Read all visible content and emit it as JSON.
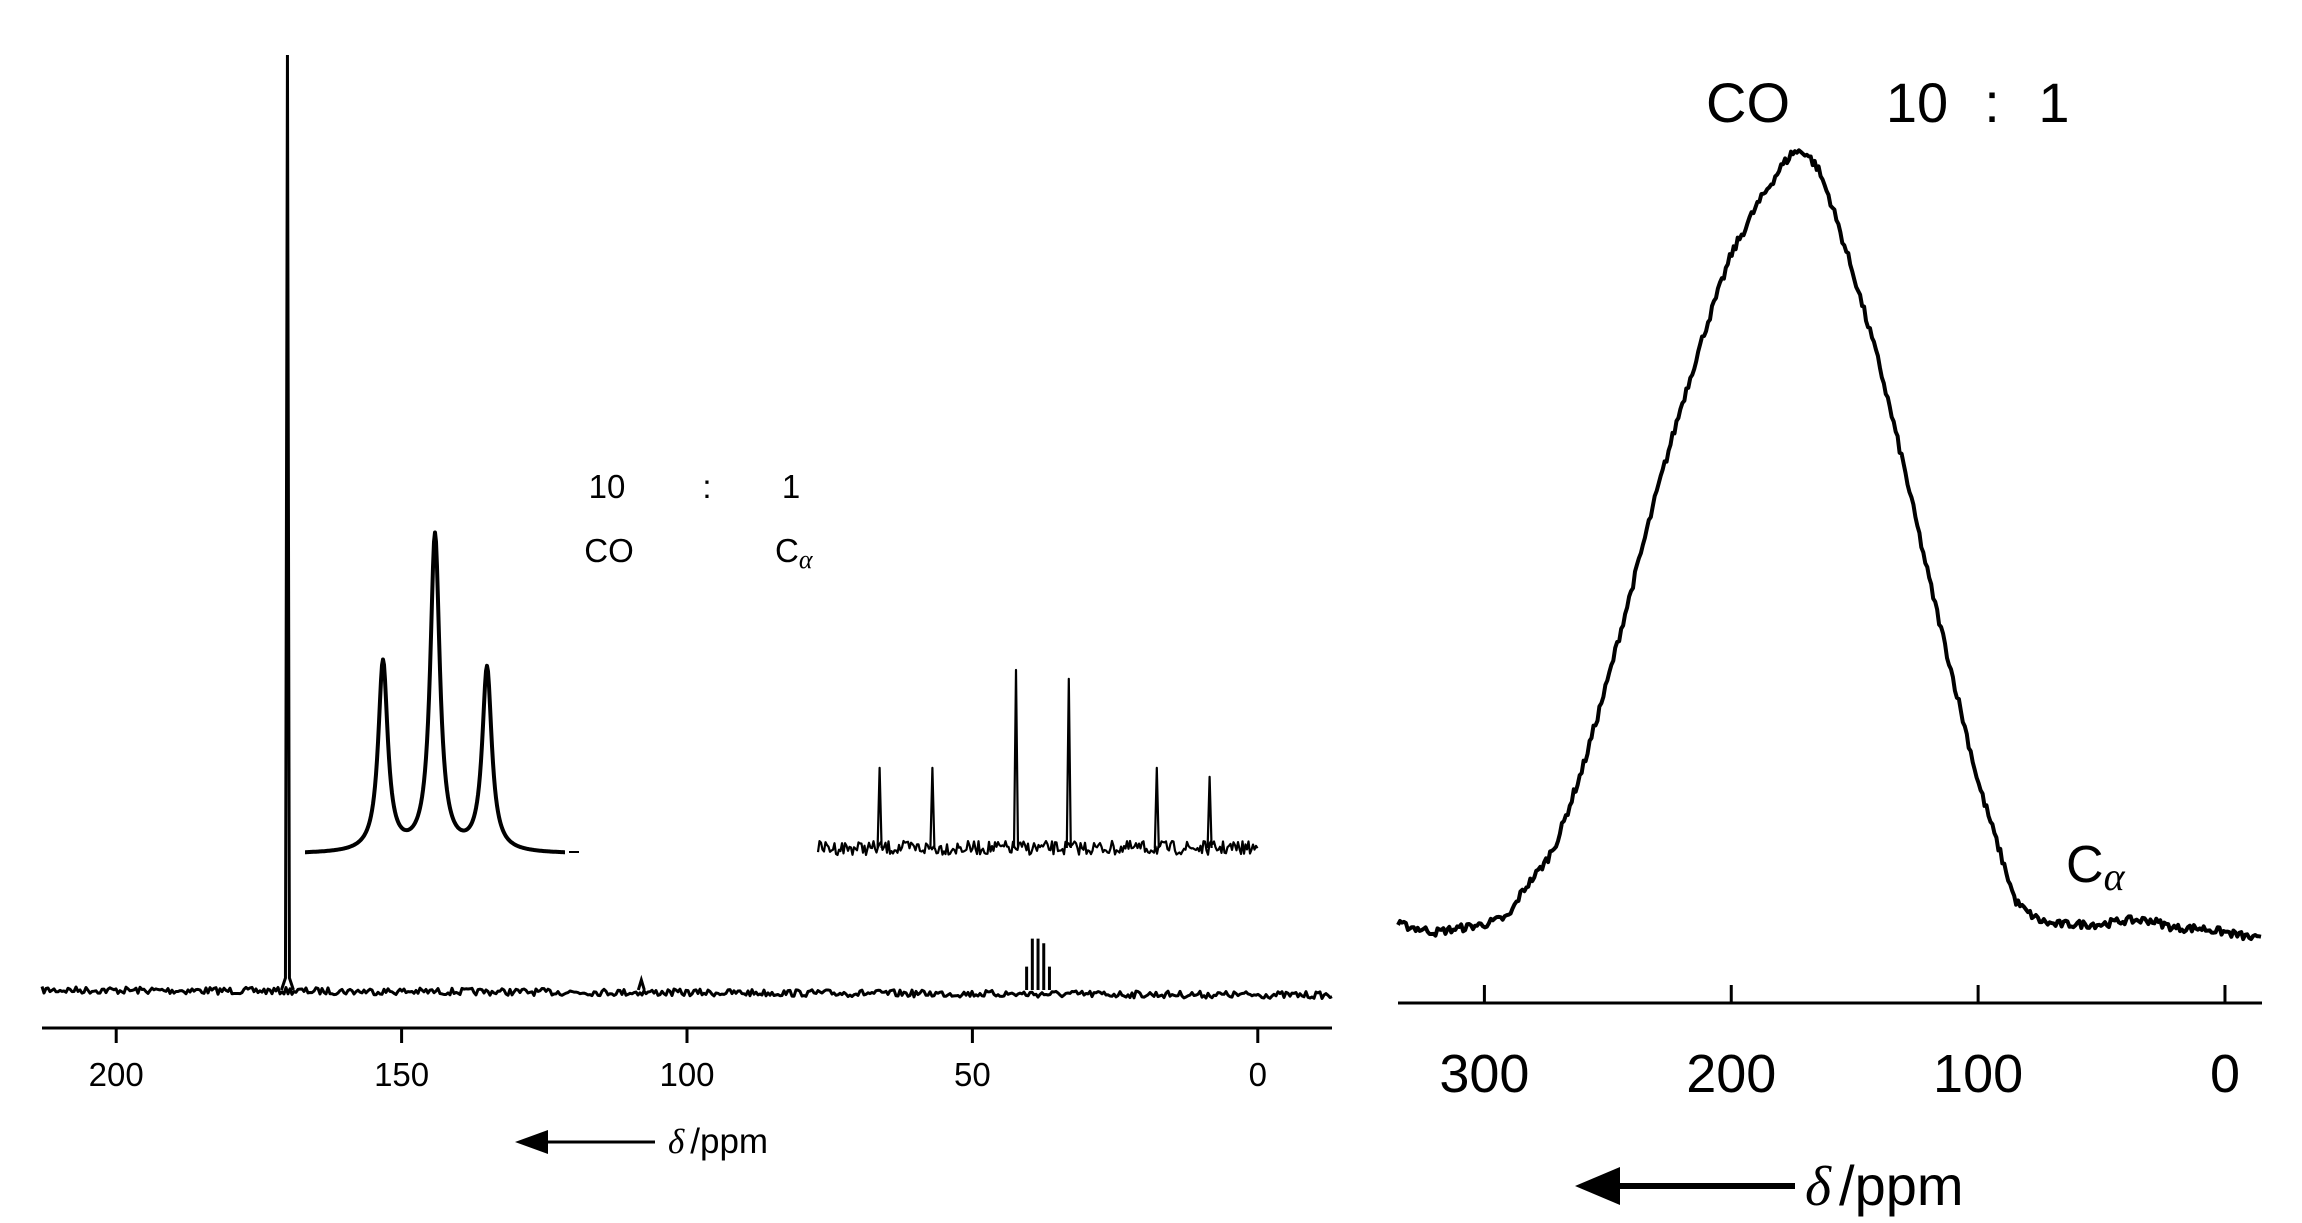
{
  "chart_data": [
    {
      "type": "line",
      "panel": "left",
      "description_axis": "chemical shift",
      "xlabel": {
        "symbol": "δ",
        "unit": "/ppm"
      },
      "x_reversed": true,
      "xlim": [
        213,
        -13
      ],
      "ticks": [
        200,
        150,
        100,
        50,
        0
      ],
      "tick_labels": [
        "200",
        "150",
        "100",
        "50",
        "0"
      ],
      "grid": false,
      "annotation": {
        "ratio_left": "10",
        "ratio_sep": ":",
        "ratio_right": "1",
        "label_left": "CO",
        "label_right_base": "C",
        "label_right_sub": "α"
      },
      "peaks": [
        {
          "name": "CO",
          "x": 170,
          "height": 1.0
        },
        {
          "name": "small",
          "x": 108,
          "height": 0.012
        },
        {
          "name": "Cα multiplet",
          "x": [
            40.5,
            39.5,
            38.5,
            37.5,
            36.5
          ],
          "height": [
            0.025,
            0.055,
            0.055,
            0.05,
            0.025
          ]
        }
      ],
      "insets": [
        {
          "name": "CO triplet",
          "peaks_relative": [
            0.3,
            0.5,
            0.7
          ],
          "heights": [
            0.6,
            1.0,
            0.58
          ]
        },
        {
          "name": "Cα expansion",
          "peaks_relative": [
            0.14,
            0.26,
            0.45,
            0.57,
            0.77,
            0.89
          ],
          "heights": [
            0.45,
            0.45,
            1.0,
            0.95,
            0.45,
            0.4
          ]
        }
      ]
    },
    {
      "type": "line",
      "panel": "right",
      "xlabel": {
        "symbol": "δ",
        "unit": "/ppm"
      },
      "x_reversed": true,
      "xlim": [
        335,
        -15
      ],
      "ticks": [
        300,
        200,
        100,
        0
      ],
      "tick_labels": [
        "300",
        "200",
        "100",
        "0"
      ],
      "grid": false,
      "annotation": {
        "label_left": "CO",
        "ratio_left": "10",
        "ratio_sep": ":",
        "ratio_right": "1",
        "label_right_base": "C",
        "label_right_sub": "α"
      },
      "profile": {
        "x": [
          335,
          320,
          300,
          290,
          285,
          280,
          275,
          270,
          260,
          250,
          240,
          230,
          220,
          210,
          200,
          190,
          180,
          175,
          170,
          165,
          160,
          150,
          140,
          130,
          120,
          110,
          100,
          90,
          85,
          80,
          75,
          70,
          60,
          50,
          40,
          30,
          20,
          10,
          0,
          -15
        ],
        "y": [
          0.02,
          0.01,
          0.02,
          0.03,
          0.06,
          0.08,
          0.1,
          0.13,
          0.22,
          0.33,
          0.45,
          0.57,
          0.68,
          0.78,
          0.87,
          0.93,
          0.98,
          1.0,
          1.0,
          0.98,
          0.94,
          0.84,
          0.73,
          0.6,
          0.46,
          0.33,
          0.2,
          0.1,
          0.05,
          0.035,
          0.025,
          0.02,
          0.02,
          0.02,
          0.025,
          0.025,
          0.015,
          0.015,
          0.01,
          0.0
        ]
      },
      "peaks": [
        {
          "name": "CO",
          "x": 173
        },
        {
          "name": "Cα",
          "x": 40
        }
      ]
    }
  ]
}
